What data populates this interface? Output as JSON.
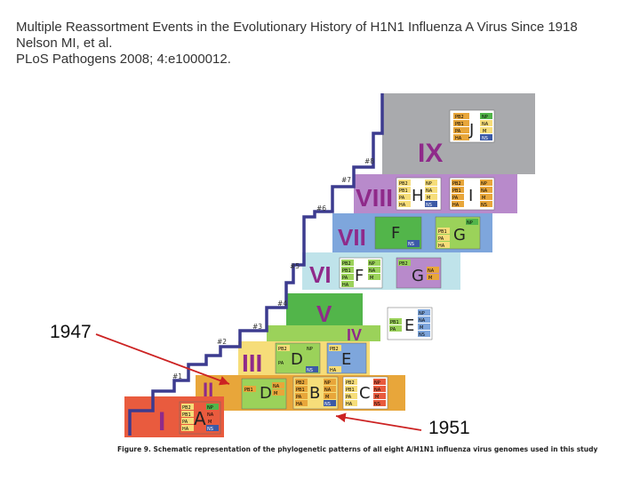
{
  "citation": {
    "title": "Multiple Reassortment Events in the Evolutionary History of H1N1 Influenza A Virus Since 1918",
    "authors": "Nelson MI, et al.",
    "journal": "PLoS Pathogens 2008; 4:e1000012."
  },
  "callouts": {
    "left": "1947",
    "right": "1951"
  },
  "caption": "Figure 9. Schematic representation of the phylogenetic patterns of all eight A/H1N1 influenza virus genomes used in this study",
  "colors": {
    "I": "#e95b3e",
    "II": "#e8a63a",
    "III": "#f6dd79",
    "IV": "#9bd25a",
    "V": "#52b54a",
    "VI": "#bfe3ea",
    "VII": "#7ea6dc",
    "VIII": "#b88acb",
    "IX": "#a9aaad",
    "staircase": "#3c3b8f",
    "arrow": "#cc2222",
    "roman": "#8f2a8a"
  },
  "steps": [
    "#1",
    "#2",
    "#3",
    "#4",
    "#5",
    "#6",
    "#7",
    "#8"
  ],
  "bands": [
    {
      "roman": "I",
      "clades": [
        {
          "letter": "A",
          "segments": [
            "PB2",
            "PB1",
            "PA",
            "HA",
            "NP",
            "NA",
            "M",
            "NS"
          ]
        }
      ]
    },
    {
      "roman": "II",
      "clades": [
        {
          "letter": "D",
          "segments": [
            "PB1",
            "NA",
            "M"
          ]
        },
        {
          "letter": "B",
          "segments": [
            "PB2",
            "PB1",
            "PA",
            "HA",
            "NP",
            "NA",
            "M",
            "NS"
          ]
        },
        {
          "letter": "C",
          "segments": [
            "PB2",
            "PB1",
            "PA",
            "HA",
            "NP",
            "NA",
            "M",
            "NS"
          ]
        }
      ]
    },
    {
      "roman": "III",
      "clades": [
        {
          "letter": "D",
          "segments": [
            "PB2",
            "PA",
            "NP",
            "NS"
          ]
        },
        {
          "letter": "E",
          "segments": [
            "PB2",
            "HA"
          ]
        }
      ]
    },
    {
      "roman": "IV",
      "clades": [
        {
          "letter": "E",
          "segments": [
            "PB1",
            "PA",
            "NP",
            "NA",
            "M",
            "NS"
          ]
        }
      ]
    },
    {
      "roman": "V",
      "clades": []
    },
    {
      "roman": "VI",
      "clades": [
        {
          "letter": "F",
          "segments": [
            "PB2",
            "PB1",
            "PA",
            "HA",
            "NP",
            "NA",
            "M"
          ]
        },
        {
          "letter": "G",
          "segments": [
            "PB2",
            "NA",
            "M"
          ]
        }
      ]
    },
    {
      "roman": "VII",
      "clades": [
        {
          "letter": "F",
          "segments": [
            "NS"
          ]
        },
        {
          "letter": "G",
          "segments": [
            "PB1",
            "PA",
            "HA",
            "NP"
          ]
        }
      ]
    },
    {
      "roman": "VIII",
      "clades": [
        {
          "letter": "H",
          "segments": [
            "PB2",
            "PB1",
            "PA",
            "HA",
            "NP",
            "NA",
            "M",
            "NS"
          ]
        },
        {
          "letter": "I",
          "segments": [
            "PB2",
            "PB1",
            "PA",
            "HA",
            "NP",
            "NA",
            "M",
            "NS"
          ]
        }
      ]
    },
    {
      "roman": "IX",
      "clades": [
        {
          "letter": "J",
          "segments": [
            "PB2",
            "PB1",
            "PA",
            "HA",
            "NP",
            "NA",
            "M",
            "NS"
          ]
        }
      ]
    }
  ]
}
